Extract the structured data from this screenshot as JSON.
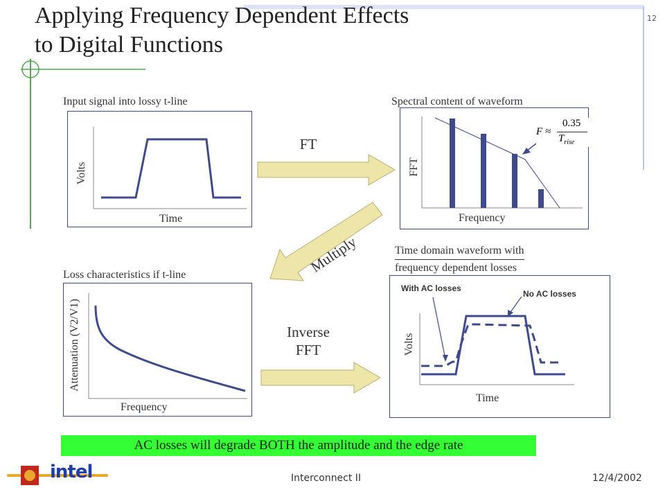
{
  "slide": {
    "title_line1": "Applying Frequency Dependent Effects",
    "title_line2": "to Digital Functions",
    "number": "12"
  },
  "panels": {
    "input_signal": {
      "caption": "Input signal into lossy t-line",
      "ylabel": "Volts",
      "xlabel": "Time"
    },
    "spectral": {
      "caption": "Spectral content of waveform",
      "ylabel": "FFT",
      "xlabel": "Frequency"
    },
    "loss": {
      "caption": "Loss characteristics if t-line",
      "ylabel": "Attenuation (V2/V1)",
      "xlabel": "Frequency"
    },
    "time_domain": {
      "caption_line1": "Time domain waveform with",
      "caption_line2": "frequency dependent losses",
      "ylabel": "Volts",
      "xlabel": "Time",
      "callout_with": "With AC losses",
      "callout_without": "No AC losses"
    }
  },
  "arrows": {
    "ft": "FT",
    "multiply": "Multiply",
    "inverse_line1": "Inverse",
    "inverse_line2": "FFT"
  },
  "formula": {
    "lhs": "F ≈",
    "numerator": "0.35",
    "denominator": "T",
    "denominator_sub": "rise"
  },
  "banner": "AC losses will degrade BOTH the amplitude and the edge rate",
  "footer": {
    "center": "Interconnect II",
    "date": "12/4/2002",
    "logo_text": "intel"
  },
  "colors": {
    "line": "#3f4a8a",
    "arrow_fill": "#eee5a8",
    "arrow_stroke": "#b8ae70",
    "banner": "#33ff33",
    "decor": "#4caa4c"
  }
}
